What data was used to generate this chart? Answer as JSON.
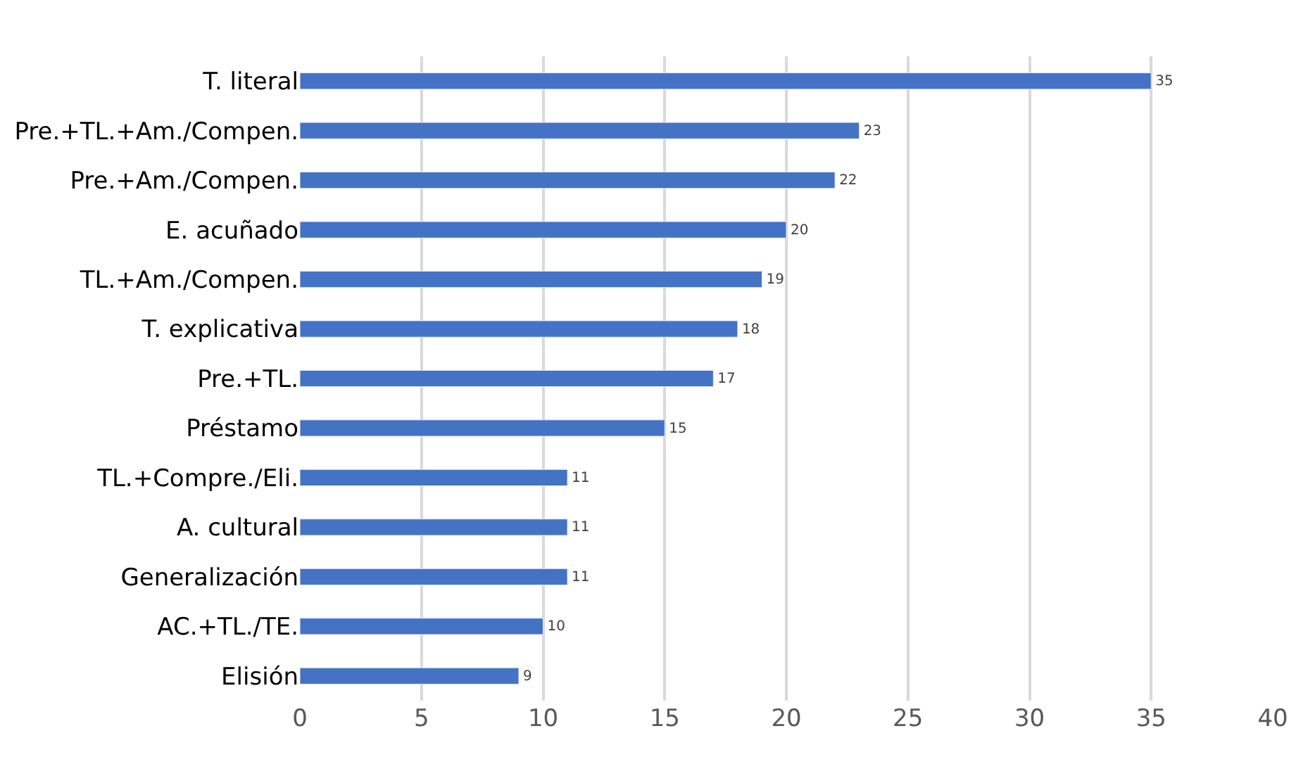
{
  "chart_data": {
    "type": "bar",
    "orientation": "horizontal",
    "categories": [
      "T. literal",
      "Pre.+TL.+Am./Compen.",
      "Pre.+Am./Compen.",
      "E. acuñado",
      "TL.+Am./Compen.",
      "T. explicativa",
      "Pre.+TL.",
      "Préstamo",
      "TL.+Compre./Eli.",
      "A. cultural",
      "Generalización",
      "AC.+TL./TE.",
      "Elisión"
    ],
    "values": [
      35,
      23,
      22,
      20,
      19,
      18,
      17,
      15,
      11,
      11,
      11,
      10,
      9
    ],
    "color": "#4472c4",
    "xlim": [
      0,
      40
    ],
    "xticks": [
      0,
      5,
      10,
      15,
      20,
      25,
      30,
      35,
      40
    ],
    "grid": "x",
    "data_labels": true,
    "legend": false
  }
}
